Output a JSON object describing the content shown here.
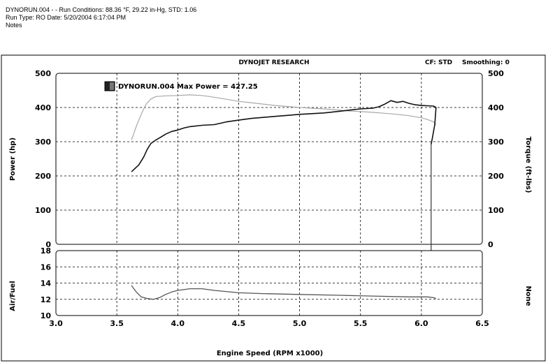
{
  "header": {
    "line1": "DYNORUN.004 -   -  Run Conditions: 88.36 °F, 29.22 in-Hg, STD: 1.06",
    "line2": "Run Type: RO  Date: 5/20/2004 6:17:04 PM",
    "line3": "Notes"
  },
  "chart_data": {
    "type": "line",
    "title": "DYNOJET RESEARCH",
    "cf_label": "CF: STD",
    "smoothing_label": "Smoothing: 0",
    "legend_label": "DYNORUN.004 Max Power = 427.25",
    "xlabel": "Engine Speed (RPM x1000)",
    "xlim": [
      3.0,
      6.5
    ],
    "x_ticks": [
      "3.0",
      "3.5",
      "4.0",
      "4.5",
      "5.0",
      "5.5",
      "6.0",
      "6.5"
    ],
    "grid": true,
    "colors": {
      "power": "#111111",
      "torque": "#a8a8a8",
      "airfuel": "#555555"
    },
    "upper": {
      "ylabel_left": "Power (hp)",
      "ylabel_right": "Torque (ft-lbs)",
      "ylim": [
        0,
        500
      ],
      "y_ticks": [
        "0",
        "100",
        "200",
        "300",
        "400",
        "500"
      ],
      "series": [
        {
          "name": "Power",
          "x": [
            3.62,
            3.68,
            3.72,
            3.75,
            3.78,
            3.82,
            3.86,
            3.9,
            3.95,
            4.0,
            4.05,
            4.1,
            4.2,
            4.3,
            4.4,
            4.5,
            4.6,
            4.7,
            4.8,
            4.9,
            5.0,
            5.1,
            5.2,
            5.3,
            5.4,
            5.5,
            5.6,
            5.65,
            5.7,
            5.75,
            5.8,
            5.85,
            5.9,
            5.95,
            6.0,
            6.05,
            6.1,
            6.12,
            6.11,
            6.09,
            6.08
          ],
          "values": [
            212,
            232,
            255,
            278,
            295,
            305,
            313,
            322,
            330,
            334,
            340,
            344,
            348,
            350,
            358,
            363,
            368,
            371,
            374,
            377,
            380,
            382,
            384,
            388,
            392,
            396,
            398,
            402,
            410,
            420,
            415,
            418,
            412,
            408,
            406,
            405,
            404,
            400,
            350,
            310,
            292
          ]
        },
        {
          "name": "Torque",
          "x": [
            3.62,
            3.66,
            3.7,
            3.74,
            3.78,
            3.82,
            3.86,
            3.9,
            4.0,
            4.1,
            4.2,
            4.3,
            4.4,
            4.5,
            4.6,
            4.7,
            4.8,
            4.9,
            5.0,
            5.1,
            5.2,
            5.3,
            5.4,
            5.5,
            5.6,
            5.7,
            5.8,
            5.9,
            6.0,
            6.05,
            6.1,
            6.12
          ],
          "values": [
            305,
            345,
            380,
            410,
            425,
            432,
            433,
            434,
            435,
            437,
            435,
            430,
            424,
            418,
            414,
            410,
            406,
            403,
            400,
            398,
            396,
            393,
            390,
            388,
            386,
            383,
            380,
            376,
            370,
            365,
            358,
            350
          ]
        }
      ]
    },
    "lower": {
      "ylabel_left": "Air/Fuel",
      "ylabel_right": "None",
      "ylim": [
        10,
        18
      ],
      "y_ticks": [
        "10",
        "12",
        "14",
        "16",
        "18"
      ],
      "series": [
        {
          "name": "Air/Fuel",
          "x": [
            3.62,
            3.66,
            3.7,
            3.75,
            3.8,
            3.85,
            3.9,
            3.95,
            4.0,
            4.1,
            4.2,
            4.3,
            4.5,
            4.7,
            5.0,
            5.3,
            5.6,
            5.9,
            6.05,
            6.1,
            6.12
          ],
          "values": [
            13.7,
            12.9,
            12.3,
            12.1,
            12.0,
            12.2,
            12.6,
            12.9,
            13.1,
            13.3,
            13.3,
            13.1,
            12.8,
            12.7,
            12.6,
            12.5,
            12.4,
            12.3,
            12.3,
            12.2,
            12.1
          ]
        }
      ]
    }
  }
}
